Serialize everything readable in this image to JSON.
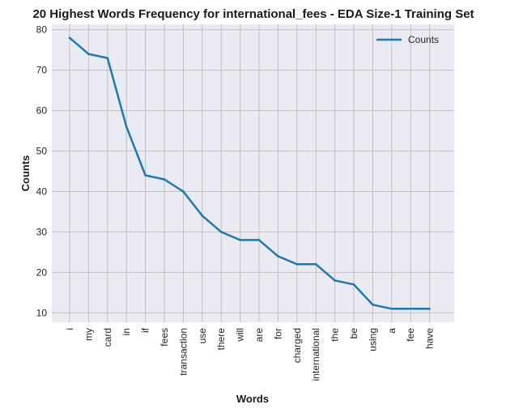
{
  "chart_data": {
    "type": "line",
    "title": "20 Highest Words Frequency for international_fees - EDA Size-1 Training Set",
    "xlabel": "Words",
    "ylabel": "Counts",
    "categories": [
      "i",
      "my",
      "card",
      "in",
      "if",
      "fees",
      "transaction",
      "use",
      "there",
      "will",
      "are",
      "for",
      "charged",
      "international",
      "the",
      "be",
      "using",
      "a",
      "fee",
      "have"
    ],
    "series": [
      {
        "name": "Counts",
        "values": [
          78,
          74,
          73,
          56,
          44,
          43,
          40,
          34,
          30,
          28,
          28,
          24,
          22,
          22,
          18,
          17,
          12,
          11,
          11,
          11
        ]
      }
    ],
    "yticks": [
      10,
      20,
      30,
      40,
      50,
      60,
      70,
      80
    ],
    "ylim": [
      7.65,
      81.35
    ],
    "grid": true,
    "legend_position": "top-right",
    "colors": {
      "line": "#1f77b4",
      "plot_background": "#eaeaf2",
      "grid": "#c0c0c0"
    }
  }
}
